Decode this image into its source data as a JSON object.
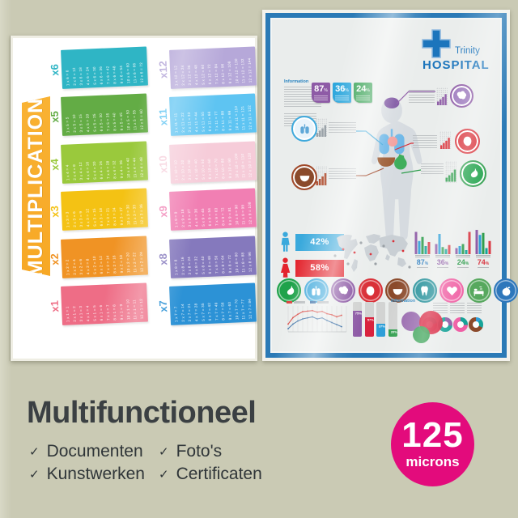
{
  "background_color": "#cacab4",
  "left_poster": {
    "title": "MULTIPLICATION",
    "banner_color": "#f7a825",
    "tables": [
      {
        "label": "x6",
        "color": "#2fb5c5",
        "column": 0,
        "equations": [
          "1 x 6 = 6",
          "2 x 6 = 12",
          "3 x 6 = 18",
          "4 x 6 = 24",
          "5 x 6 = 30",
          "6 x 6 = 36",
          "7 x 6 = 42",
          "8 x 6 = 48",
          "9 x 6 = 54",
          "10 x 6 = 60",
          "11 x 6 = 66",
          "12 x 6 = 72"
        ]
      },
      {
        "label": "x5",
        "color": "#63ac45",
        "column": 0,
        "equations": [
          "1 x 5 = 5",
          "2 x 5 = 10",
          "3 x 5 = 15",
          "4 x 5 = 20",
          "5 x 5 = 25",
          "6 x 5 = 30",
          "7 x 5 = 35",
          "8 x 5 = 40",
          "9 x 5 = 45",
          "10 x 5 = 50",
          "11 x 5 = 55",
          "12 x 5 = 60"
        ]
      },
      {
        "label": "x4",
        "color": "#9ac93c",
        "column": 0,
        "equations": [
          "1 x 4 = 4",
          "2 x 4 = 8",
          "3 x 4 = 12",
          "4 x 4 = 16",
          "5 x 4 = 20",
          "6 x 4 = 24",
          "7 x 4 = 28",
          "8 x 4 = 32",
          "9 x 4 = 36",
          "10 x 4 = 40",
          "11 x 4 = 44",
          "12 x 4 = 48"
        ]
      },
      {
        "label": "x3",
        "color": "#f4c214",
        "column": 0,
        "equations": [
          "1 x 3 = 3",
          "2 x 3 = 6",
          "3 x 3 = 9",
          "4 x 3 = 12",
          "5 x 3 = 15",
          "6 x 3 = 18",
          "7 x 3 = 21",
          "8 x 3 = 24",
          "9 x 3 = 27",
          "10 x 3 = 30",
          "11 x 3 = 33",
          "12 x 3 = 36"
        ]
      },
      {
        "label": "x2",
        "color": "#f09324",
        "column": 0,
        "equations": [
          "1 x 2 = 2",
          "2 x 2 = 4",
          "3 x 2 = 6",
          "4 x 2 = 8",
          "5 x 2 = 10",
          "6 x 2 = 12",
          "7 x 2 = 14",
          "8 x 2 = 16",
          "9 x 2 = 18",
          "10 x 2 = 20",
          "11 x 2 = 22",
          "12 x 2 = 24"
        ]
      },
      {
        "label": "x1",
        "color": "#ee6d86",
        "column": 0,
        "equations": [
          "1 x 1 = 1",
          "2 x 1 = 2",
          "3 x 1 = 3",
          "4 x 1 = 4",
          "5 x 1 = 5",
          "6 x 1 = 6",
          "7 x 1 = 7",
          "8 x 1 = 8",
          "9 x 1 = 9",
          "10 x 1 = 10",
          "11 x 1 = 11",
          "12 x 1 = 12"
        ]
      },
      {
        "label": "x12",
        "color": "#b6a8d9",
        "column": 1,
        "equations": [
          "1 x 12 = 12",
          "2 x 12 = 24",
          "3 x 12 = 36",
          "4 x 12 = 48",
          "5 x 12 = 60",
          "6 x 12 = 72",
          "7 x 12 = 84",
          "8 x 12 = 96",
          "9 x 12 = 108",
          "10 x 12 = 120",
          "11 x 12 = 132",
          "12 x 12 = 144"
        ]
      },
      {
        "label": "x11",
        "color": "#5ec4f2",
        "column": 1,
        "equations": [
          "1 x 11 = 11",
          "2 x 11 = 22",
          "3 x 11 = 33",
          "4 x 11 = 44",
          "5 x 11 = 55",
          "6 x 11 = 66",
          "7 x 11 = 77",
          "8 x 11 = 88",
          "9 x 11 = 99",
          "10 x 11 = 110",
          "11 x 11 = 121",
          "12 x 11 = 132"
        ]
      },
      {
        "label": "x10",
        "color": "#f6ccd9",
        "column": 1,
        "equations": [
          "1 x 10 = 10",
          "2 x 10 = 20",
          "3 x 10 = 30",
          "4 x 10 = 40",
          "5 x 10 = 50",
          "6 x 10 = 60",
          "7 x 10 = 70",
          "8 x 10 = 80",
          "9 x 10 = 90",
          "10 x 10 = 100",
          "11 x 10 = 110",
          "12 x 10 = 120"
        ]
      },
      {
        "label": "x9",
        "color": "#f17fb3",
        "column": 1,
        "equations": [
          "1 x 9 = 9",
          "2 x 9 = 18",
          "3 x 9 = 27",
          "4 x 9 = 36",
          "5 x 9 = 45",
          "6 x 9 = 54",
          "7 x 9 = 63",
          "8 x 9 = 72",
          "9 x 9 = 81",
          "10 x 9 = 90",
          "11 x 9 = 99",
          "12 x 9 = 108"
        ]
      },
      {
        "label": "x8",
        "color": "#8579bd",
        "column": 1,
        "equations": [
          "1 x 8 = 8",
          "2 x 8 = 16",
          "3 x 8 = 24",
          "4 x 8 = 32",
          "5 x 8 = 40",
          "6 x 8 = 48",
          "7 x 8 = 56",
          "8 x 8 = 64",
          "9 x 8 = 72",
          "10 x 8 = 80",
          "11 x 8 = 88",
          "12 x 8 = 96"
        ]
      },
      {
        "label": "x7",
        "color": "#2c92d6",
        "column": 1,
        "equations": [
          "1 x 7 = 7",
          "2 x 7 = 14",
          "3 x 7 = 21",
          "4 x 7 = 28",
          "5 x 7 = 35",
          "6 x 7 = 42",
          "7 x 7 = 49",
          "8 x 7 = 56",
          "9 x 7 = 63",
          "10 x 7 = 70",
          "11 x 7 = 77",
          "12 x 7 = 84"
        ]
      }
    ]
  },
  "right_poster": {
    "logo": {
      "line1": "Trinity",
      "line2": "HOSPITAL",
      "color": "#1c75bc"
    },
    "info_label_top": "Information",
    "info_label_bottom": "Information",
    "badges": [
      {
        "value": "87",
        "unit": "%",
        "color": "#8e5ba6"
      },
      {
        "value": "36",
        "unit": "%",
        "color": "#2fa8dd"
      },
      {
        "value": "24",
        "unit": "%",
        "color": "#2f9e4d"
      }
    ],
    "gender": [
      {
        "icon": "male",
        "label": "42%",
        "color": "#3aa9dc"
      },
      {
        "icon": "female",
        "label": "58%",
        "color": "#e3242d"
      }
    ],
    "callouts": [
      {
        "name": "brain",
        "icon": "brain",
        "line_color": "#8e5ba6",
        "circle_bg": "#9c79bd",
        "glyph": "#ffffff",
        "bar_color": "#8e5ba6"
      },
      {
        "name": "lungs",
        "icon": "lungs",
        "line_color": "#3fa9dc",
        "circle_bg": "#eaf4fb",
        "glyph": "#5fa8d8",
        "bar_color": "#9aa2a8"
      },
      {
        "name": "heart",
        "icon": "heart-organ",
        "line_color": "#d93038",
        "circle_bg": "#d93038",
        "glyph": "#ffffff",
        "bar_color": "#d93038"
      },
      {
        "name": "liver",
        "icon": "liver",
        "line_color": "#a14a2b",
        "circle_bg": "#8b4a2b",
        "glyph": "#ffffff",
        "bar_color": "#b04f31"
      },
      {
        "name": "stomach",
        "icon": "stomach",
        "line_color": "#2f9e4d",
        "circle_bg": "#1fa24a",
        "glyph": "#ffffff",
        "bar_color": "#2f9e4d"
      }
    ],
    "mini_bar_colors": [
      "#8e5ba6",
      "#2e9fd8",
      "#2f9e4d",
      "#17a398",
      "#d93a45"
    ],
    "mini_groups": [
      {
        "percent": "87",
        "unit": "%",
        "color": "#2e7fc2",
        "bars": [
          22,
          13,
          17,
          8,
          12
        ]
      },
      {
        "percent": "36",
        "unit": "%",
        "color": "#8e5ba6",
        "bars": [
          10,
          20,
          7,
          5,
          9
        ]
      },
      {
        "percent": "24",
        "unit": "%",
        "color": "#2f9e4d",
        "bars": [
          6,
          8,
          10,
          4,
          22
        ]
      },
      {
        "percent": "74",
        "unit": "%",
        "color": "#d93a45",
        "bars": [
          24,
          19,
          21,
          6,
          13
        ]
      }
    ],
    "organ_icons": [
      {
        "name": "stomach",
        "color": "#1fa24a"
      },
      {
        "name": "lungs",
        "color": "#3fa9dc"
      },
      {
        "name": "brain",
        "color": "#8e5ba6"
      },
      {
        "name": "heart-organ",
        "color": "#d93038"
      },
      {
        "name": "liver",
        "color": "#8b4a2b"
      },
      {
        "name": "tooth",
        "color": "#1c8c96"
      },
      {
        "name": "heart",
        "color": "#f062a5"
      },
      {
        "name": "bed",
        "color": "#57a85e"
      },
      {
        "name": "apple",
        "color": "#2e77bb"
      }
    ],
    "line_chart": {
      "series": [
        {
          "name": "red",
          "color": "#d9453f",
          "values": [
            30,
            55,
            68,
            78,
            80,
            82,
            76,
            79,
            70,
            66,
            58,
            64
          ]
        },
        {
          "name": "blue",
          "color": "#3a6ea5",
          "values": [
            12,
            30,
            42,
            50,
            54,
            58,
            50,
            54,
            44,
            36,
            28,
            20
          ]
        }
      ]
    },
    "tracks": [
      {
        "label": "75%",
        "value": 75,
        "color": "#8e5ba6"
      },
      {
        "label": "57%",
        "value": 57,
        "color": "#d9233e"
      },
      {
        "label": "37%",
        "value": 37,
        "color": "#2e9fd8"
      },
      {
        "label": "20%",
        "value": 20,
        "color": "#2f9e4d"
      }
    ],
    "venn": [
      {
        "color": "#8e5ba6"
      },
      {
        "color": "#d9233e"
      },
      {
        "color": "#2f9e4d"
      }
    ],
    "donuts": [
      {
        "segments": [
          {
            "color": "#17a398",
            "pct": 22
          },
          {
            "color": "#d9233e",
            "pct": 78
          }
        ]
      },
      {
        "segments": [
          {
            "color": "#8e5ba6",
            "pct": 28
          },
          {
            "color": "#17a398",
            "pct": 72
          }
        ]
      },
      {
        "segments": [
          {
            "color": "#17a398",
            "pct": 26
          },
          {
            "color": "#ef5fa5",
            "pct": 74
          }
        ]
      },
      {
        "segments": [
          {
            "color": "#2e9fd8",
            "pct": 12
          },
          {
            "color": "#17a398",
            "pct": 20
          },
          {
            "color": "#8b4a2b",
            "pct": 68
          }
        ]
      }
    ]
  },
  "bottom": {
    "heading": "Multifunctioneel",
    "checkmark": "✓",
    "items": [
      "Documenten",
      "Kunstwerken",
      "Foto's",
      "Certificaten"
    ],
    "badge": {
      "value": "125",
      "unit": "microns",
      "color": "#e30b7c"
    }
  },
  "chart_data": [
    {
      "type": "bar",
      "title": "mini grouped bars with percents",
      "groups": [
        "87%",
        "36%",
        "24%",
        "74%"
      ],
      "series_colors": [
        "purple",
        "blue",
        "green",
        "teal",
        "red"
      ],
      "values": [
        [
          22,
          13,
          17,
          8,
          12
        ],
        [
          10,
          20,
          7,
          5,
          9
        ],
        [
          6,
          8,
          10,
          4,
          22
        ],
        [
          24,
          19,
          21,
          6,
          13
        ]
      ]
    },
    {
      "type": "pie",
      "title": "gender split",
      "labels": [
        "male",
        "female"
      ],
      "values": [
        42,
        58
      ]
    },
    {
      "type": "line",
      "title": "trend lines",
      "series": [
        {
          "name": "red",
          "values": [
            30,
            55,
            68,
            78,
            80,
            82,
            76,
            79,
            70,
            66,
            58,
            64
          ]
        },
        {
          "name": "blue",
          "values": [
            12,
            30,
            42,
            50,
            54,
            58,
            50,
            54,
            44,
            36,
            28,
            20
          ]
        }
      ]
    },
    {
      "type": "bar",
      "title": "progress tracks",
      "values": [
        75,
        57,
        37,
        20
      ]
    },
    {
      "type": "pie",
      "title": "donut charts",
      "values": [
        [
          22,
          78
        ],
        [
          28,
          72
        ],
        [
          26,
          74
        ],
        [
          12,
          20,
          68
        ]
      ]
    }
  ]
}
